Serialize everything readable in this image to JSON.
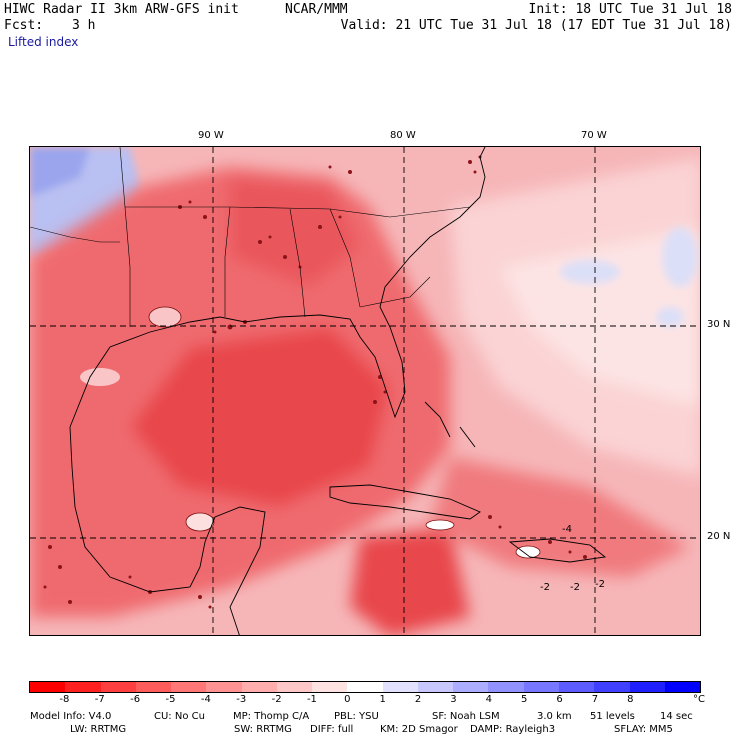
{
  "header": {
    "title_left": "HIWC Radar II 3km ARW-GFS init",
    "org": "NCAR/MMM",
    "init": "Init: 18 UTC Tue 31 Jul 18",
    "fcst_label": "Fcst:",
    "fcst_value": "3 h",
    "valid": "Valid: 21 UTC Tue 31 Jul 18 (17 EDT Tue 31 Jul 18)",
    "field": "Lifted index"
  },
  "map": {
    "lon_labels": [
      "90 W",
      "80 W",
      "70 W"
    ],
    "lat_labels": [
      "30 N",
      "20 N"
    ],
    "contour_labels": [
      "-2",
      "-2",
      "-2",
      "-4"
    ],
    "colors": {
      "deep_red": "#e8363c",
      "mid_red": "#f06a6e",
      "light_red": "#f7a5a8",
      "pale_pink": "#fbd2d3",
      "pale_blue": "#d9dcf7",
      "blue": "#a9b2f0"
    }
  },
  "colorbar": {
    "colors": [
      "#ff0000",
      "#ff2020",
      "#ff4040",
      "#ff5c5c",
      "#ff7777",
      "#ff9292",
      "#ffadad",
      "#ffc8c8",
      "#ffe2e2",
      "#ffffff",
      "#e2e2ff",
      "#c8c8ff",
      "#adadff",
      "#9292ff",
      "#7777ff",
      "#5c5cff",
      "#4040ff",
      "#2020ff",
      "#0000ff"
    ],
    "labels": [
      "-8",
      "-7",
      "-6",
      "-5",
      "-4",
      "-3",
      "-2",
      "-1",
      "0",
      "1",
      "2",
      "3",
      "4",
      "5",
      "6",
      "7",
      "8"
    ],
    "unit": "°C"
  },
  "footer": {
    "line1": [
      "Model Info: V4.0",
      "CU: No Cu",
      "MP: Thomp C/A",
      "PBL: YSU",
      "SF: Noah LSM",
      "3.0 km",
      "51 levels",
      "14 sec"
    ],
    "line2": [
      "LW: RRTMG",
      "SW: RRTMG",
      "DIFF: full",
      "KM: 2D Smagor",
      "DAMP: Rayleigh3",
      "SFLAY: MM5"
    ]
  }
}
